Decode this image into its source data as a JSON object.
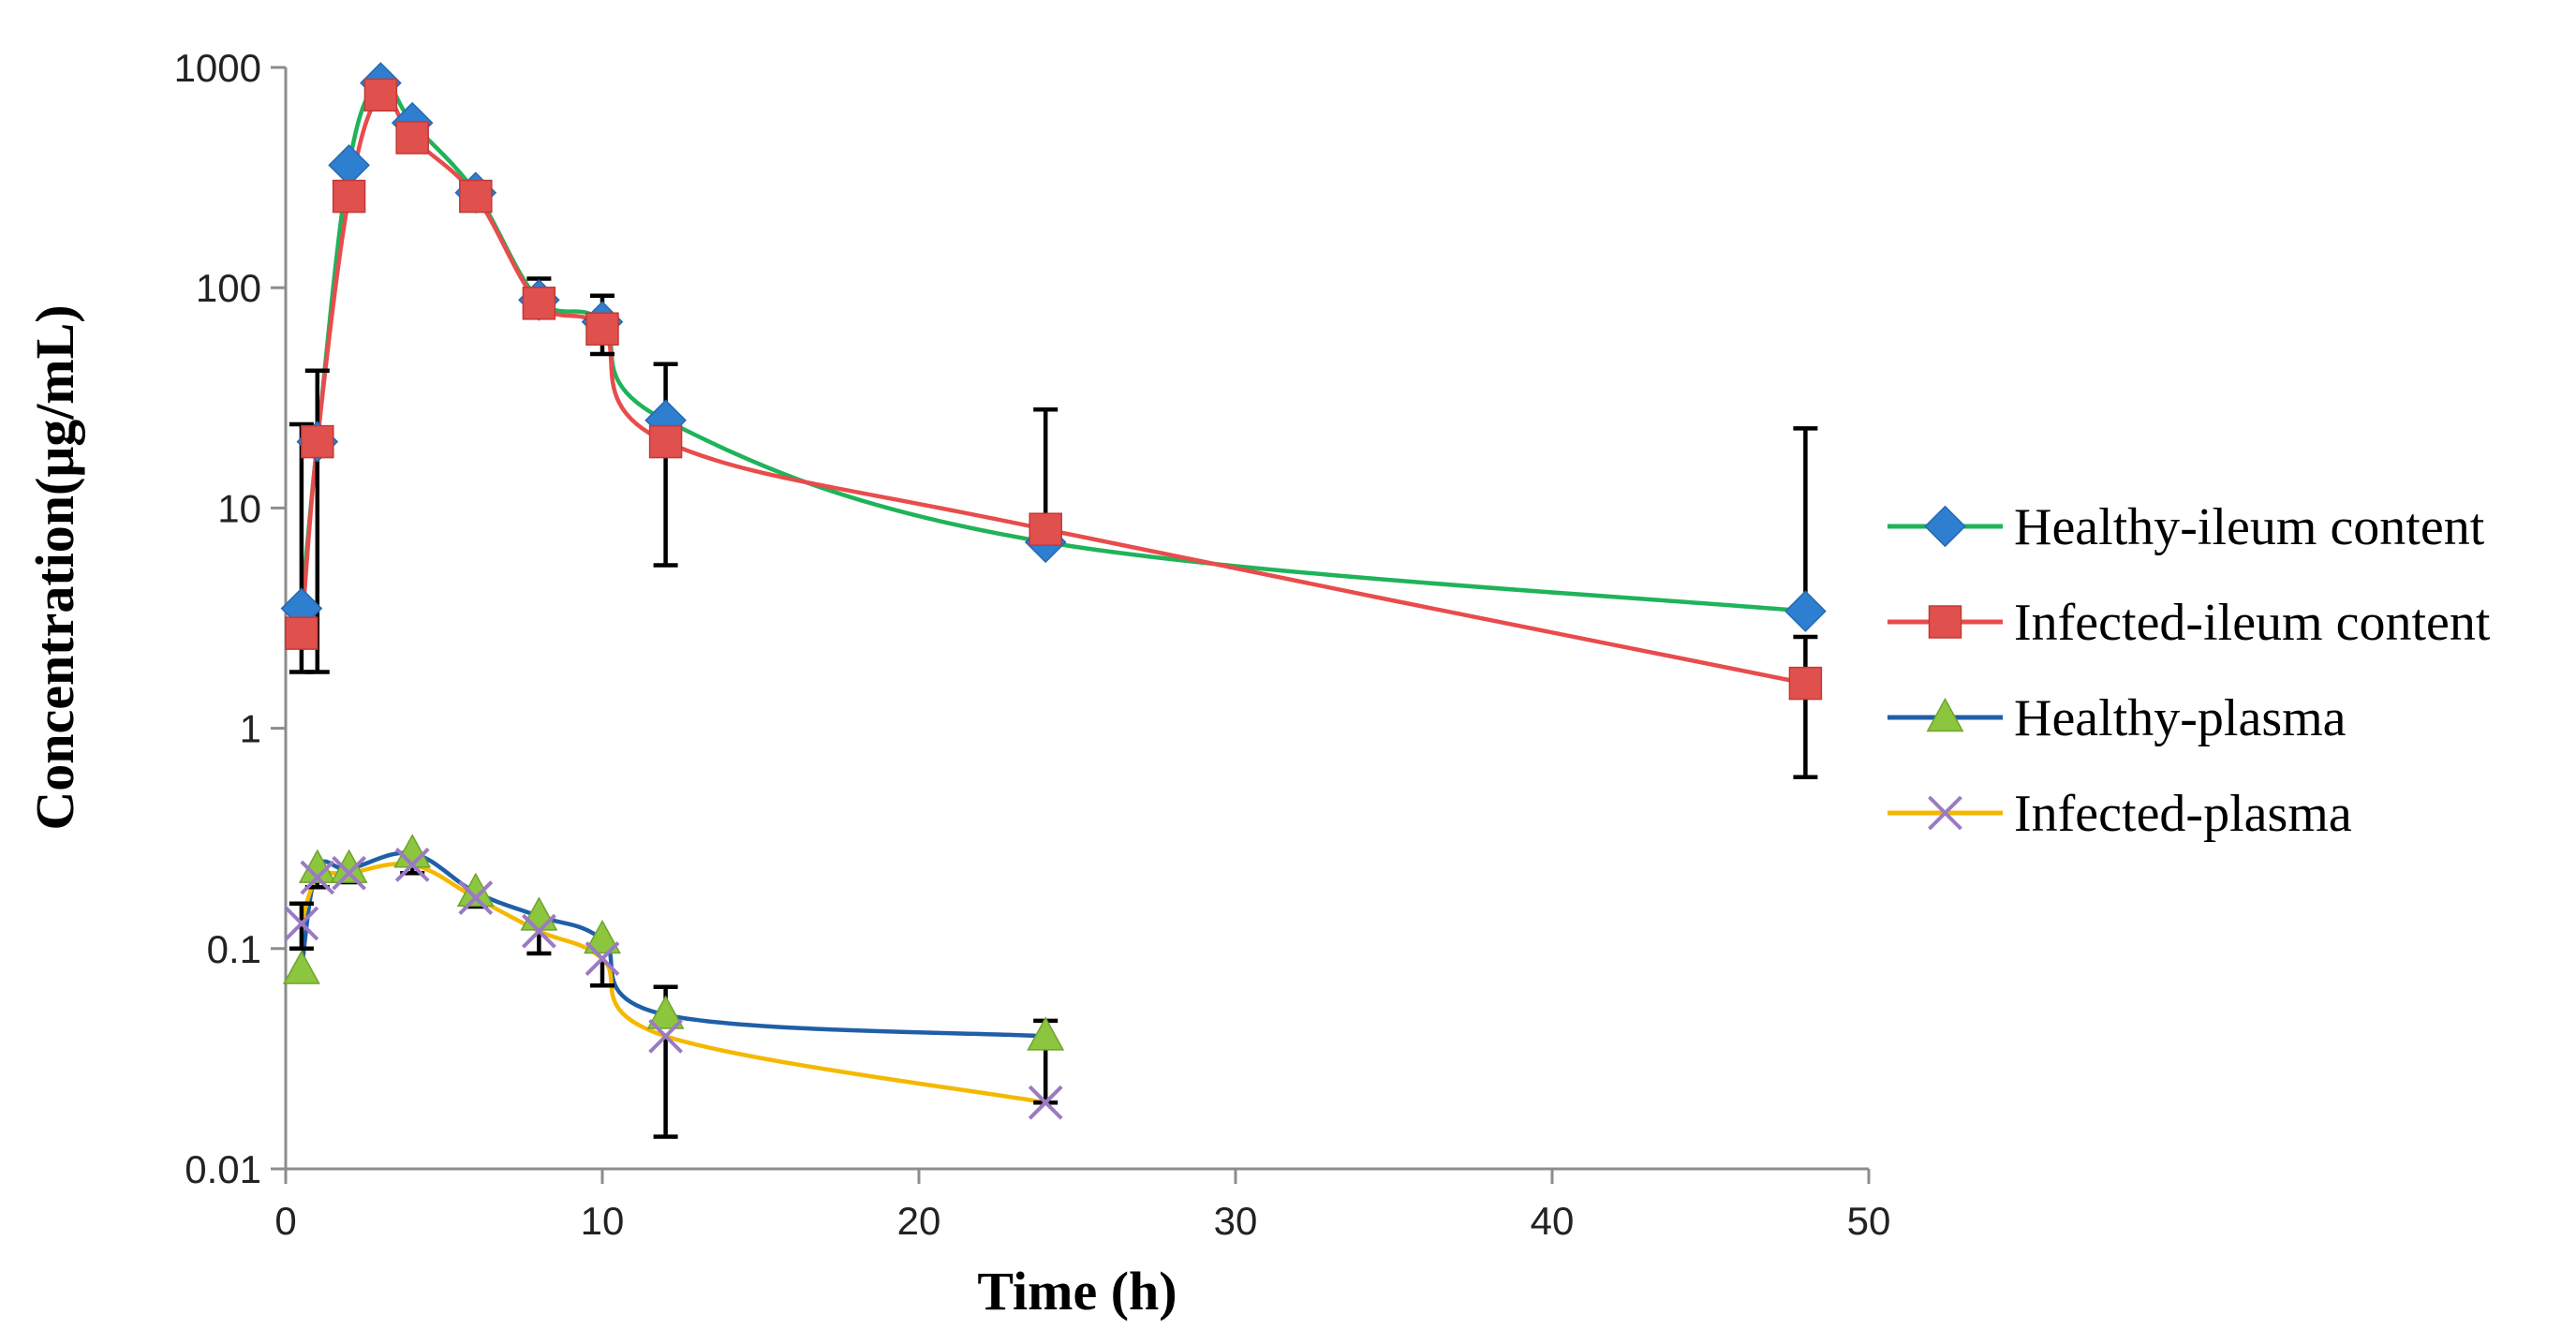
{
  "chart_data": {
    "type": "line",
    "xlabel": "Time (h)",
    "ylabel": "Concentration(μg/mL)",
    "yscale": "log",
    "xlim": [
      0,
      50
    ],
    "ylim": [
      0.01,
      1000
    ],
    "xticks": [
      "0",
      "10",
      "20",
      "30",
      "40",
      "50"
    ],
    "yticks": [
      "0.01",
      "0.1",
      "1",
      "10",
      "100",
      "1000"
    ],
    "legend_position": "right",
    "series": [
      {
        "name": "Healthy-ileum content",
        "line_color": "#1fb35a",
        "marker_color": "#2f7fd0",
        "marker": "diamond",
        "x": [
          0.5,
          1,
          2,
          3,
          4,
          6,
          8,
          10,
          12,
          24,
          48
        ],
        "values": [
          3.5,
          20,
          360,
          850,
          560,
          270,
          88,
          70,
          25,
          7,
          3.4
        ],
        "error_upper": [
          24,
          42,
          null,
          null,
          null,
          null,
          110,
          92,
          45,
          28,
          23
        ]
      },
      {
        "name": "Infected-ileum content",
        "line_color": "#e84c4c",
        "marker_color": "#e0504d",
        "marker": "square",
        "x": [
          0.5,
          1,
          2,
          3,
          4,
          6,
          8,
          10,
          12,
          24,
          48
        ],
        "values": [
          2.7,
          20,
          260,
          750,
          480,
          260,
          85,
          65,
          20,
          8,
          1.6
        ],
        "error_lower": [
          1.8,
          1.8,
          null,
          null,
          null,
          null,
          null,
          50,
          5.5,
          null,
          0.6
        ],
        "error_upper": [
          null,
          null,
          null,
          null,
          null,
          null,
          null,
          null,
          null,
          null,
          2.6
        ]
      },
      {
        "name": "Healthy-plasma",
        "line_color": "#1f5fa8",
        "marker_color": "#8cc63f",
        "marker": "triangle",
        "x": [
          0.5,
          1,
          2,
          4,
          6,
          8,
          10,
          12,
          24
        ],
        "values": [
          0.08,
          0.23,
          0.23,
          0.27,
          0.18,
          0.14,
          0.11,
          0.05,
          0.04
        ],
        "error_upper": [
          null,
          null,
          null,
          null,
          null,
          null,
          null,
          0.067,
          0.047
        ],
        "error_lower": [
          null,
          null,
          null,
          null,
          null,
          null,
          null,
          null,
          0.02
        ]
      },
      {
        "name": "Infected-plasma",
        "line_color": "#f5b800",
        "marker_color": "#9b7ac4",
        "marker": "x",
        "x": [
          0.5,
          1,
          2,
          4,
          6,
          8,
          10,
          12,
          24
        ],
        "values": [
          0.13,
          0.21,
          0.22,
          0.24,
          0.17,
          0.12,
          0.09,
          0.04,
          0.02
        ],
        "error_upper": [
          0.16,
          null,
          null,
          null,
          null,
          null,
          null,
          null,
          null
        ],
        "error_lower": [
          0.1,
          0.19,
          0.2,
          0.22,
          0.155,
          0.095,
          0.068,
          0.014,
          null
        ]
      }
    ]
  }
}
